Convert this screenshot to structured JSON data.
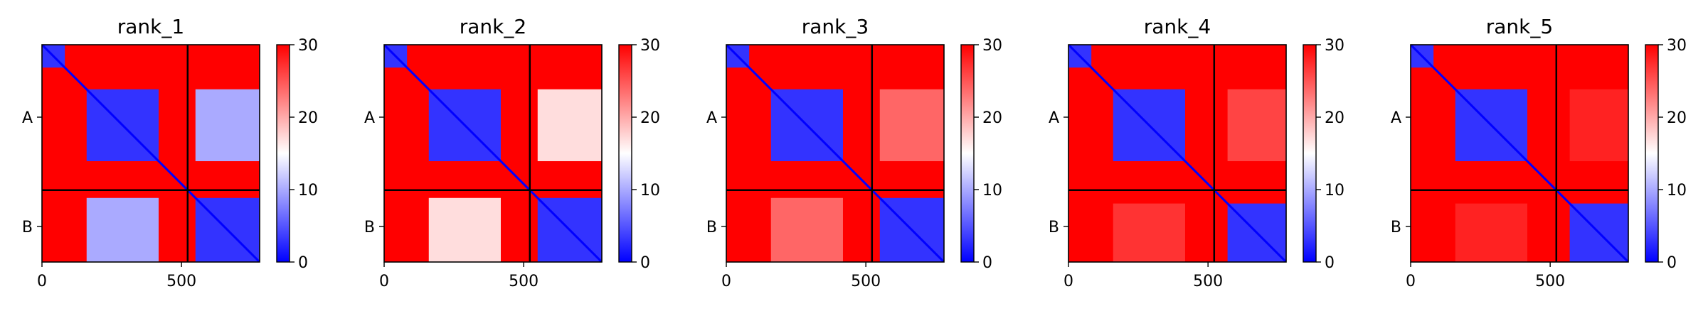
{
  "chart_data": [
    {
      "type": "heatmap",
      "title": "rank_1",
      "xlim": [
        0,
        780
      ],
      "ylim": [
        0,
        780
      ],
      "xticks": [
        {
          "value": 0,
          "label": "0"
        },
        {
          "value": 500,
          "label": "500"
        }
      ],
      "yticks": [
        {
          "value": 260,
          "label": "A"
        },
        {
          "value": 652,
          "label": "B"
        }
      ],
      "chain_boundary": 522,
      "colorbar": {
        "min": 0,
        "max": 30,
        "ticks": [
          "0",
          "10",
          "20",
          "30"
        ],
        "colormap": "bwr"
      },
      "regions": [
        {
          "x": [
            0,
            780
          ],
          "y": [
            0,
            780
          ],
          "value": 30
        },
        {
          "x": [
            0,
            82
          ],
          "y": [
            0,
            82
          ],
          "value": 3
        },
        {
          "x": [
            160,
            418
          ],
          "y": [
            160,
            418
          ],
          "value": 3
        },
        {
          "x": [
            550,
            780
          ],
          "y": [
            550,
            780
          ],
          "value": 3
        },
        {
          "x": [
            550,
            780
          ],
          "y": [
            160,
            418
          ],
          "value": 10
        },
        {
          "x": [
            160,
            418
          ],
          "y": [
            550,
            780
          ],
          "value": 10
        }
      ]
    },
    {
      "type": "heatmap",
      "title": "rank_2",
      "xlim": [
        0,
        780
      ],
      "ylim": [
        0,
        780
      ],
      "xticks": [
        {
          "value": 0,
          "label": "0"
        },
        {
          "value": 500,
          "label": "500"
        }
      ],
      "yticks": [
        {
          "value": 260,
          "label": "A"
        },
        {
          "value": 652,
          "label": "B"
        }
      ],
      "chain_boundary": 522,
      "colorbar": {
        "min": 0,
        "max": 30,
        "ticks": [
          "0",
          "10",
          "20",
          "30"
        ],
        "colormap": "bwr"
      },
      "regions": [
        {
          "x": [
            0,
            780
          ],
          "y": [
            0,
            780
          ],
          "value": 30
        },
        {
          "x": [
            0,
            82
          ],
          "y": [
            0,
            82
          ],
          "value": 3
        },
        {
          "x": [
            160,
            418
          ],
          "y": [
            160,
            418
          ],
          "value": 3
        },
        {
          "x": [
            550,
            780
          ],
          "y": [
            550,
            780
          ],
          "value": 3
        },
        {
          "x": [
            550,
            780
          ],
          "y": [
            160,
            418
          ],
          "value": 17
        },
        {
          "x": [
            160,
            418
          ],
          "y": [
            550,
            780
          ],
          "value": 17
        }
      ]
    },
    {
      "type": "heatmap",
      "title": "rank_3",
      "xlim": [
        0,
        780
      ],
      "ylim": [
        0,
        780
      ],
      "xticks": [
        {
          "value": 0,
          "label": "0"
        },
        {
          "value": 500,
          "label": "500"
        }
      ],
      "yticks": [
        {
          "value": 260,
          "label": "A"
        },
        {
          "value": 652,
          "label": "B"
        }
      ],
      "chain_boundary": 522,
      "colorbar": {
        "min": 0,
        "max": 30,
        "ticks": [
          "0",
          "10",
          "20",
          "30"
        ],
        "colormap": "bwr"
      },
      "regions": [
        {
          "x": [
            0,
            780
          ],
          "y": [
            0,
            780
          ],
          "value": 30
        },
        {
          "x": [
            0,
            82
          ],
          "y": [
            0,
            82
          ],
          "value": 3
        },
        {
          "x": [
            160,
            418
          ],
          "y": [
            160,
            418
          ],
          "value": 3
        },
        {
          "x": [
            550,
            780
          ],
          "y": [
            550,
            780
          ],
          "value": 3
        },
        {
          "x": [
            550,
            780
          ],
          "y": [
            160,
            418
          ],
          "value": 24
        },
        {
          "x": [
            160,
            418
          ],
          "y": [
            550,
            780
          ],
          "value": 24
        }
      ]
    },
    {
      "type": "heatmap",
      "title": "rank_4",
      "xlim": [
        0,
        780
      ],
      "ylim": [
        0,
        780
      ],
      "xticks": [
        {
          "value": 0,
          "label": "0"
        },
        {
          "value": 500,
          "label": "500"
        }
      ],
      "yticks": [
        {
          "value": 260,
          "label": "A"
        },
        {
          "value": 652,
          "label": "B"
        }
      ],
      "chain_boundary": 522,
      "colorbar": {
        "min": 0,
        "max": 30,
        "ticks": [
          "0",
          "10",
          "20",
          "30"
        ],
        "colormap": "bwr"
      },
      "regions": [
        {
          "x": [
            0,
            780
          ],
          "y": [
            0,
            780
          ],
          "value": 30
        },
        {
          "x": [
            0,
            82
          ],
          "y": [
            0,
            82
          ],
          "value": 3
        },
        {
          "x": [
            160,
            418
          ],
          "y": [
            160,
            418
          ],
          "value": 3
        },
        {
          "x": [
            570,
            780
          ],
          "y": [
            570,
            780
          ],
          "value": 3
        },
        {
          "x": [
            570,
            780
          ],
          "y": [
            160,
            418
          ],
          "value": 26
        },
        {
          "x": [
            160,
            418
          ],
          "y": [
            570,
            780
          ],
          "value": 27
        }
      ]
    },
    {
      "type": "heatmap",
      "title": "rank_5",
      "xlim": [
        0,
        780
      ],
      "ylim": [
        0,
        780
      ],
      "xticks": [
        {
          "value": 0,
          "label": "0"
        },
        {
          "value": 500,
          "label": "500"
        }
      ],
      "yticks": [
        {
          "value": 260,
          "label": "A"
        },
        {
          "value": 652,
          "label": "B"
        }
      ],
      "chain_boundary": 522,
      "colorbar": {
        "min": 0,
        "max": 30,
        "ticks": [
          "0",
          "10",
          "20",
          "30"
        ],
        "colormap": "bwr"
      },
      "regions": [
        {
          "x": [
            0,
            780
          ],
          "y": [
            0,
            780
          ],
          "value": 30
        },
        {
          "x": [
            0,
            82
          ],
          "y": [
            0,
            82
          ],
          "value": 3
        },
        {
          "x": [
            160,
            418
          ],
          "y": [
            160,
            418
          ],
          "value": 3
        },
        {
          "x": [
            570,
            780
          ],
          "y": [
            570,
            780
          ],
          "value": 3
        },
        {
          "x": [
            570,
            780
          ],
          "y": [
            160,
            418
          ],
          "value": 28
        },
        {
          "x": [
            160,
            418
          ],
          "y": [
            570,
            780
          ],
          "value": 28
        }
      ]
    }
  ]
}
